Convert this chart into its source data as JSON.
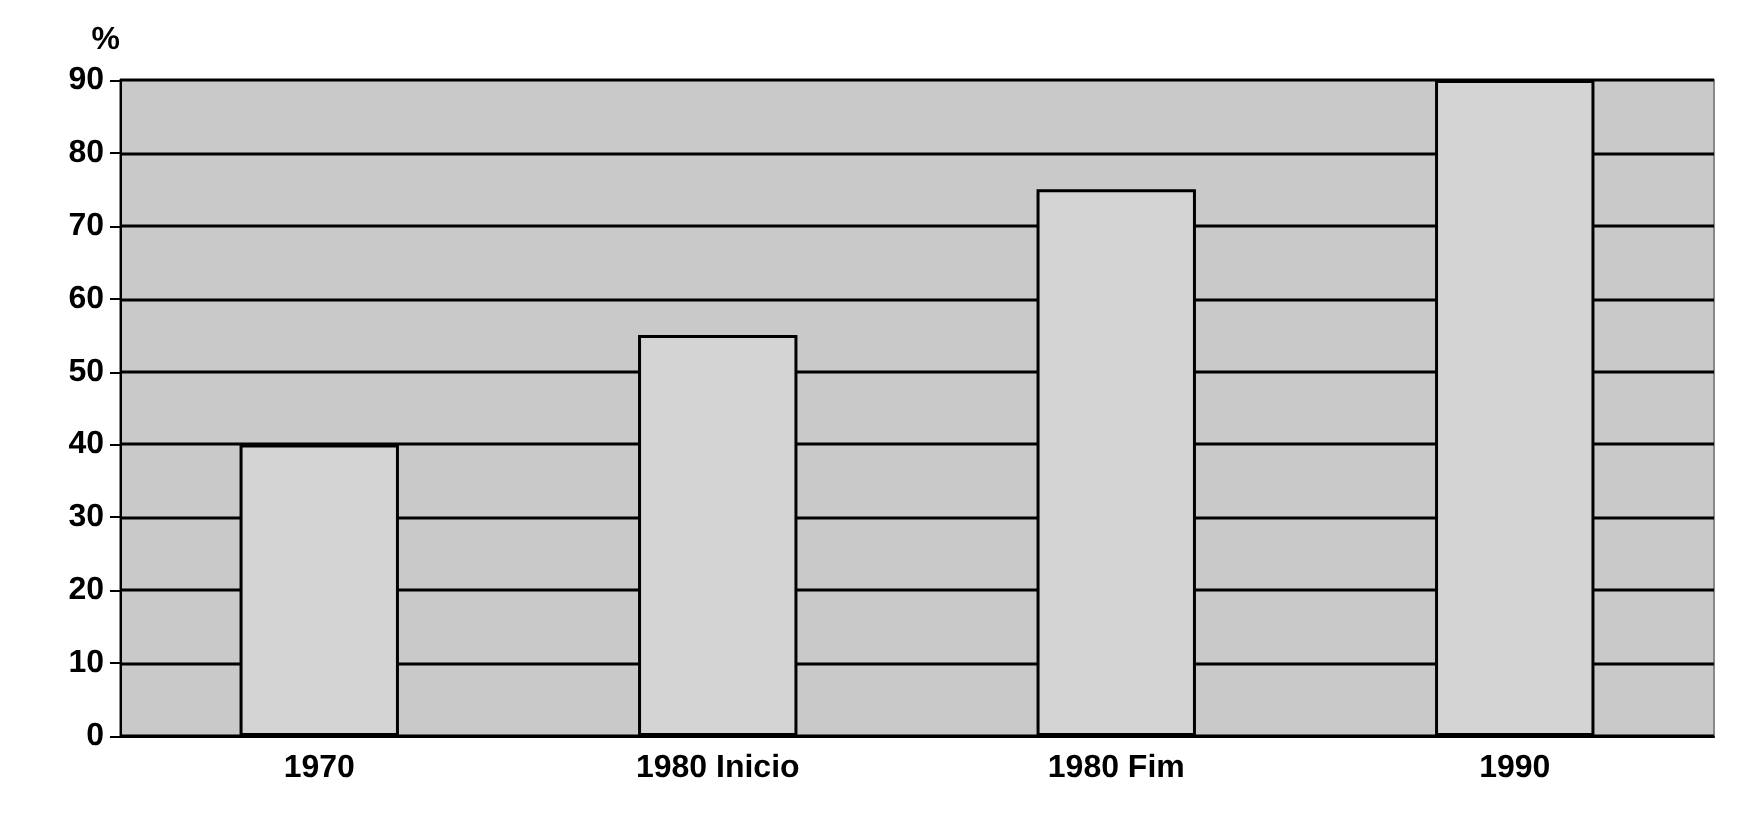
{
  "chart_data": {
    "type": "bar",
    "ylabel": "%",
    "categories": [
      "1970",
      "1980 Inicio",
      "1980 Fim",
      "1990"
    ],
    "values": [
      40,
      55,
      75,
      90
    ],
    "color": "#d4d4d4",
    "ylim": [
      0,
      90
    ],
    "yticks": [
      0,
      10,
      20,
      30,
      40,
      50,
      60,
      70,
      80,
      90
    ],
    "grid": "y"
  }
}
